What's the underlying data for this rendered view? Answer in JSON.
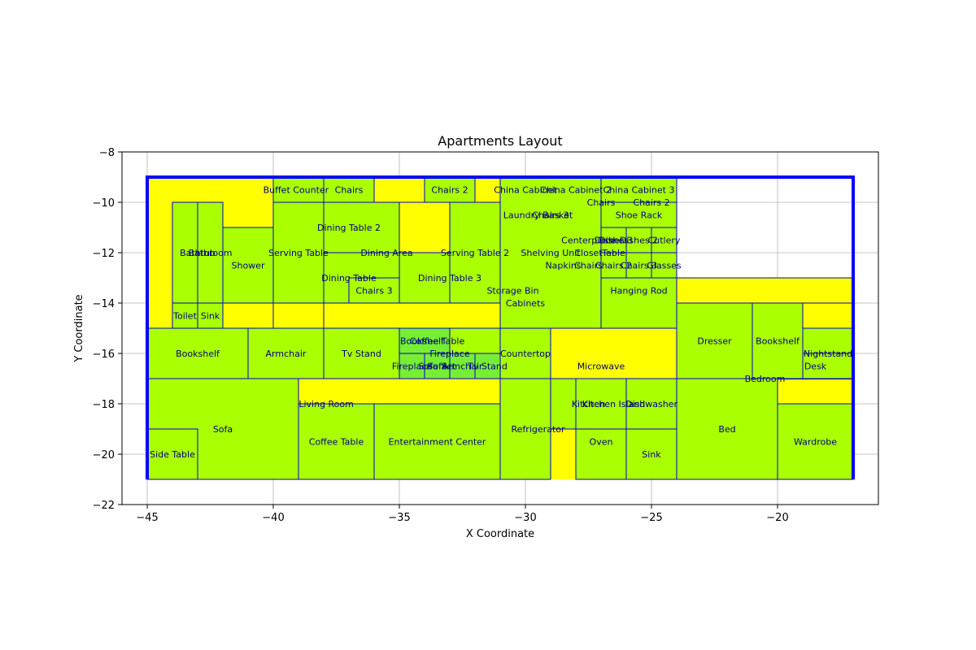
{
  "chart_data": {
    "type": "floor-plan",
    "title": "Apartments Layout",
    "xlabel": "X Coordinate",
    "ylabel": "Y Coordinate",
    "xlim": [
      -46,
      -16
    ],
    "ylim": [
      -22,
      -8
    ],
    "x_ticks": [
      -45,
      -40,
      -35,
      -30,
      -25,
      -20
    ],
    "y_ticks": [
      -22,
      -20,
      -18,
      -16,
      -14,
      -12,
      -10,
      -8
    ],
    "x_tick_labels": [
      "−45",
      "−40",
      "−35",
      "−30",
      "−25",
      "−20"
    ],
    "y_tick_labels": [
      "−22",
      "−20",
      "−18",
      "−16",
      "−14",
      "−12",
      "−10",
      "−8"
    ],
    "grid": true,
    "colors": {
      "apartment_fill": "#ffff00",
      "room_fill": "#aaff00",
      "furniture_fill": "#77ee33",
      "edge": "#0000cc",
      "boundary": "#0000ff",
      "label": "#000080",
      "grid": "#b0b0b0"
    },
    "apartments": [
      {
        "x0": -45,
        "y0": -15,
        "x1": -31,
        "y1": -9
      },
      {
        "x0": -45,
        "y0": -21,
        "x1": -31,
        "y1": -15
      },
      {
        "x0": -31,
        "y0": -15,
        "x1": -24,
        "y1": -9
      },
      {
        "x0": -31,
        "y0": -21,
        "x1": -24,
        "y1": -15
      },
      {
        "x0": -24,
        "y0": -21,
        "x1": -17,
        "y1": -13
      }
    ],
    "boundary": [
      [
        -45,
        -21
      ],
      [
        -45,
        -9
      ],
      [
        -17,
        -9
      ],
      [
        -17,
        -13
      ],
      [
        -17,
        -21
      ]
    ],
    "rooms": [
      {
        "label": "Buffet Counter",
        "x0": -40,
        "y0": -10,
        "x1": -38,
        "y1": -9
      },
      {
        "label": "Chairs",
        "x0": -38,
        "y0": -10,
        "x1": -36,
        "y1": -9
      },
      {
        "label": "Chairs 2",
        "x0": -34,
        "y0": -10,
        "x1": -32,
        "y1": -9
      },
      {
        "label": "Dining Table 2",
        "x0": -38,
        "y0": -12,
        "x1": -35,
        "y1": -10
      },
      {
        "label": "Serving Table",
        "x0": -40,
        "y0": -14,
        "x1": -38,
        "y1": -10
      },
      {
        "label": "Dining Area",
        "x0": -38,
        "y0": -12,
        "x1": -34,
        "y1": -12
      },
      {
        "label": "Dining Table",
        "x0": -38,
        "y0": -14,
        "x1": -35,
        "y1": -12
      },
      {
        "label": "Chairs 3",
        "x0": -37,
        "y0": -14,
        "x1": -35,
        "y1": -13
      },
      {
        "label": "Dining Table 3",
        "x0": -35,
        "y0": -14,
        "x1": -32,
        "y1": -12
      },
      {
        "label": "Serving Table 2",
        "x0": -33,
        "y0": -14,
        "x1": -31,
        "y1": -10
      },
      {
        "label": "Bathroom",
        "x0": -44,
        "y0": -14,
        "x1": -42,
        "y1": -10
      },
      {
        "label": "Bathtub",
        "x0": -44,
        "y0": -14,
        "x1": -43,
        "y1": -10
      },
      {
        "label": "Shower",
        "x0": -42,
        "y0": -15,
        "x1": -40,
        "y1": -11
      },
      {
        "label": "Toilet",
        "x0": -44,
        "y0": -15,
        "x1": -43,
        "y1": -14
      },
      {
        "label": "Sink",
        "x0": -43,
        "y0": -15,
        "x1": -42,
        "y1": -14
      },
      {
        "label": "Bookshelf",
        "x0": -45,
        "y0": -17,
        "x1": -41,
        "y1": -15
      },
      {
        "label": "Armchair",
        "x0": -41,
        "y0": -17,
        "x1": -38,
        "y1": -15
      },
      {
        "label": "Tv Stand",
        "x0": -38,
        "y0": -17,
        "x1": -35,
        "y1": -15
      },
      {
        "label": "Bookshelf",
        "x0": -35,
        "y0": -16,
        "x1": -34,
        "y1": -15
      },
      {
        "label": "Coffee Table",
        "x0": -34,
        "y0": -16,
        "x1": -33,
        "y1": -15
      },
      {
        "label": "Fireplace",
        "x0": -35,
        "y0": -17,
        "x1": -31,
        "y1": -15
      },
      {
        "label": "Countertop",
        "x0": -31,
        "y0": -17,
        "x1": -29,
        "y1": -15
      },
      {
        "label": "Fireplace",
        "x0": -35,
        "y0": -17,
        "x1": -34,
        "y1": -16
      },
      {
        "label": "Sofa",
        "x0": -34,
        "y0": -17,
        "x1": -33,
        "y1": -16
      },
      {
        "label": "Sofa Set",
        "x0": -34,
        "y0": -17,
        "x1": -33,
        "y1": -16
      },
      {
        "label": "Armchair",
        "x0": -33,
        "y0": -17,
        "x1": -32,
        "y1": -16
      },
      {
        "label": "Tv Stand",
        "x0": -32,
        "y0": -17,
        "x1": -31,
        "y1": -16
      },
      {
        "label": "Sofa",
        "x0": -45,
        "y0": -21,
        "x1": -39,
        "y1": -17
      },
      {
        "label": "Side Table",
        "x0": -45,
        "y0": -21,
        "x1": -43,
        "y1": -19
      },
      {
        "label": "Living Room",
        "x0": -39,
        "y0": -21,
        "x1": -36,
        "y1": -18
      },
      {
        "label": "Coffee Table",
        "x0": -39,
        "y0": -21,
        "x1": -36,
        "y1": -18
      },
      {
        "label": "Entertainment Center",
        "x0": -36,
        "y0": -21,
        "x1": -31,
        "y1": -18
      },
      {
        "label": "China Cabinet",
        "x0": -31,
        "y0": -10,
        "x1": -29,
        "y1": -9
      },
      {
        "label": "China Cabinet 2",
        "x0": -29,
        "y0": -10,
        "x1": -27,
        "y1": -9
      },
      {
        "label": "China Cabinet 3",
        "x0": -27,
        "y0": -10,
        "x1": -24,
        "y1": -9
      },
      {
        "label": "Chairs",
        "x0": -27,
        "y0": -10,
        "x1": -26,
        "y1": -10
      },
      {
        "label": "Chairs 2",
        "x0": -26,
        "y0": -10,
        "x1": -24,
        "y1": -10
      },
      {
        "label": "Laundry Basket",
        "x0": -31,
        "y0": -11,
        "x1": -29,
        "y1": -10
      },
      {
        "label": "Chairs 3",
        "x0": -30,
        "y0": -11,
        "x1": -29,
        "y1": -10
      },
      {
        "label": "Shoe Rack",
        "x0": -27,
        "y0": -11,
        "x1": -24,
        "y1": -10
      },
      {
        "label": "Centerpiece",
        "x0": -28,
        "y0": -12,
        "x1": -27,
        "y1": -11
      },
      {
        "label": "Dishes",
        "x0": -27,
        "y0": -12,
        "x1": -26,
        "y1": -11
      },
      {
        "label": "Table",
        "x0": -27,
        "y0": -12,
        "x1": -26,
        "y1": -11
      },
      {
        "label": "Dishes 2",
        "x0": -26,
        "y0": -12,
        "x1": -25,
        "y1": -11
      },
      {
        "label": "Cutlery",
        "x0": -25,
        "y0": -12,
        "x1": -24,
        "y1": -11
      },
      {
        "label": "Shelving Unit",
        "x0": -31,
        "y0": -12,
        "x1": -29,
        "y1": -11
      },
      {
        "label": "Closet",
        "x0": -29,
        "y0": -12,
        "x1": -27,
        "y1": -11
      },
      {
        "label": "Table",
        "x0": -27,
        "y0": -12,
        "x1": -25,
        "y1": -12
      },
      {
        "label": "Napkins",
        "x0": -29,
        "y0": -13,
        "x1": -28,
        "y1": -12
      },
      {
        "label": "Chairs",
        "x0": -28,
        "y0": -13,
        "x1": -27,
        "y1": -12
      },
      {
        "label": "Chairs 2",
        "x0": -27,
        "y0": -13,
        "x1": -26,
        "y1": -12
      },
      {
        "label": "Chairs 3",
        "x0": -26,
        "y0": -13,
        "x1": -25,
        "y1": -12
      },
      {
        "label": "Glasses",
        "x0": -25,
        "y0": -13,
        "x1": -24,
        "y1": -12
      },
      {
        "label": "Storage Bin",
        "x0": -31,
        "y0": -14,
        "x1": -29,
        "y1": -13
      },
      {
        "label": "Cabinets",
        "x0": -31,
        "y0": -15,
        "x1": -27,
        "y1": -9
      },
      {
        "label": "Hanging Rod",
        "x0": -27,
        "y0": -15,
        "x1": -24,
        "y1": -13
      },
      {
        "label": "Microwave",
        "x0": -28,
        "y0": -17,
        "x1": -26,
        "y1": -16
      },
      {
        "label": "Kitchen",
        "x0": -29,
        "y0": -19,
        "x1": -27,
        "y1": -17
      },
      {
        "label": "Kitchen Island",
        "x0": -28,
        "y0": -19,
        "x1": -26,
        "y1": -17
      },
      {
        "label": "Dishwasher",
        "x0": -26,
        "y0": -19,
        "x1": -24,
        "y1": -17
      },
      {
        "label": "Refrigerator",
        "x0": -31,
        "y0": -21,
        "x1": -29,
        "y1": -17
      },
      {
        "label": "Oven",
        "x0": -28,
        "y0": -21,
        "x1": -26,
        "y1": -19
      },
      {
        "label": "Sink",
        "x0": -26,
        "y0": -21,
        "x1": -24,
        "y1": -19
      },
      {
        "label": "Dresser",
        "x0": -24,
        "y0": -17,
        "x1": -21,
        "y1": -14
      },
      {
        "label": "Bookshelf",
        "x0": -21,
        "y0": -17,
        "x1": -19,
        "y1": -14
      },
      {
        "label": "Nightstand",
        "x0": -19,
        "y0": -16,
        "x1": -17,
        "y1": -15
      },
      {
        "label": "Desk",
        "x0": -19,
        "y0": -17,
        "x1": -17,
        "y1": -16
      },
      {
        "label": "Bedroom",
        "x0": -24,
        "y0": -17,
        "x1": -17,
        "y1": -17
      },
      {
        "label": "Bed",
        "x0": -24,
        "y0": -21,
        "x1": -20,
        "y1": -17
      },
      {
        "label": "Wardrobe",
        "x0": -20,
        "y0": -21,
        "x1": -17,
        "y1": -18
      }
    ],
    "furniture": [
      {
        "x0": -35,
        "y0": -16,
        "x1": -33,
        "y1": -15
      },
      {
        "x0": -35,
        "y0": -17,
        "x1": -34,
        "y1": -16
      },
      {
        "x0": -34,
        "y0": -17,
        "x1": -33,
        "y1": -16
      },
      {
        "x0": -33,
        "y0": -17,
        "x1": -32,
        "y1": -16
      },
      {
        "x0": -32,
        "y0": -17,
        "x1": -31,
        "y1": -16
      }
    ],
    "yellow_blocks": [
      {
        "x0": -38,
        "y0": -15,
        "x1": -31,
        "y1": -14
      },
      {
        "x0": -42,
        "y0": -15,
        "x1": -40,
        "y1": -14
      },
      {
        "x0": -35,
        "y0": -12,
        "x1": -33,
        "y1": -10
      },
      {
        "x0": -39,
        "y0": -18,
        "x1": -31,
        "y1": -17
      },
      {
        "x0": -29,
        "y0": -17,
        "x1": -24,
        "y1": -15
      },
      {
        "x0": -24,
        "y0": -14,
        "x1": -17,
        "y1": -13
      },
      {
        "x0": -19,
        "y0": -15,
        "x1": -17,
        "y1": -14
      }
    ],
    "text_labels": [
      {
        "text": "Buffet Counter",
        "x": -39.1,
        "y": -9.5
      },
      {
        "text": "Chairs",
        "x": -37.0,
        "y": -9.5
      },
      {
        "text": "Chairs 2",
        "x": -33.0,
        "y": -9.5
      },
      {
        "text": "China Cabinet",
        "x": -30.0,
        "y": -9.5
      },
      {
        "text": "China Cabinet 2",
        "x": -28.0,
        "y": -9.5
      },
      {
        "text": "China Cabinet 3",
        "x": -25.5,
        "y": -9.5
      },
      {
        "text": "Chairs",
        "x": -27.0,
        "y": -10.0
      },
      {
        "text": "Chairs 2",
        "x": -25.0,
        "y": -10.0
      },
      {
        "text": "Laundry Basket",
        "x": -29.5,
        "y": -10.5
      },
      {
        "text": "Chairs 3",
        "x": -29.0,
        "y": -10.5
      },
      {
        "text": "Shoe Rack",
        "x": -25.5,
        "y": -10.5
      },
      {
        "text": "Dining Table 2",
        "x": -37.0,
        "y": -11.0
      },
      {
        "text": "Centerpiece",
        "x": -27.5,
        "y": -11.5
      },
      {
        "text": "Dishes",
        "x": -26.5,
        "y": -11.5
      },
      {
        "text": "Dishes 3",
        "x": -26.5,
        "y": -11.5
      },
      {
        "text": "Dishes 2",
        "x": -25.5,
        "y": -11.5
      },
      {
        "text": "Cutlery",
        "x": -24.5,
        "y": -11.5
      },
      {
        "text": "Bathtub",
        "x": -43.0,
        "y": -12.0
      },
      {
        "text": "Bathroom",
        "x": -42.5,
        "y": -12.0
      },
      {
        "text": "Serving Table",
        "x": -39.0,
        "y": -12.0
      },
      {
        "text": "Dining Area",
        "x": -35.5,
        "y": -12.0
      },
      {
        "text": "Serving Table 2",
        "x": -32.0,
        "y": -12.0
      },
      {
        "text": "Shelving Unit",
        "x": -29.0,
        "y": -12.0
      },
      {
        "text": "Closet",
        "x": -27.5,
        "y": -12.0
      },
      {
        "text": "Table",
        "x": -26.5,
        "y": -12.0
      },
      {
        "text": "Shower",
        "x": -41.0,
        "y": -12.5
      },
      {
        "text": "Napkins",
        "x": -28.5,
        "y": -12.5
      },
      {
        "text": "Chairs",
        "x": -27.5,
        "y": -12.5
      },
      {
        "text": "Chairs 2",
        "x": -26.5,
        "y": -12.5
      },
      {
        "text": "Chairs 3",
        "x": -25.5,
        "y": -12.5
      },
      {
        "text": "Glasses",
        "x": -24.5,
        "y": -12.5
      },
      {
        "text": "Dining Table",
        "x": -37.0,
        "y": -13.0
      },
      {
        "text": "Dining Table 3",
        "x": -33.0,
        "y": -13.0
      },
      {
        "text": "Chairs 3",
        "x": -36.0,
        "y": -13.5
      },
      {
        "text": "Storage Bin",
        "x": -30.5,
        "y": -13.5
      },
      {
        "text": "Hanging Rod",
        "x": -25.5,
        "y": -13.5
      },
      {
        "text": "Cabinets",
        "x": -30.0,
        "y": -14.0
      },
      {
        "text": "Toilet",
        "x": -43.5,
        "y": -14.5
      },
      {
        "text": "Sink",
        "x": -42.5,
        "y": -14.5
      },
      {
        "text": "Bookshelf",
        "x": -34.1,
        "y": -15.5
      },
      {
        "text": "Coffee Table",
        "x": -33.5,
        "y": -15.5
      },
      {
        "text": "Dresser",
        "x": -22.5,
        "y": -15.5
      },
      {
        "text": "Bookshelf",
        "x": -20.0,
        "y": -15.5
      },
      {
        "text": "Bookshelf",
        "x": -43.0,
        "y": -16.0
      },
      {
        "text": "Armchair",
        "x": -39.5,
        "y": -16.0
      },
      {
        "text": "Tv Stand",
        "x": -36.5,
        "y": -16.0
      },
      {
        "text": "Fireplace",
        "x": -33.0,
        "y": -16.0
      },
      {
        "text": "Countertop",
        "x": -30.0,
        "y": -16.0
      },
      {
        "text": "Nightstand",
        "x": -18.0,
        "y": -16.0
      },
      {
        "text": "Fireplace",
        "x": -34.5,
        "y": -16.5
      },
      {
        "text": "Sofa",
        "x": -33.5,
        "y": -16.5
      },
      {
        "text": "Sofa Set",
        "x": -33.5,
        "y": -16.5
      },
      {
        "text": "Armchair",
        "x": -32.5,
        "y": -16.5
      },
      {
        "text": "Tv Stand",
        "x": -31.5,
        "y": -16.5
      },
      {
        "text": "Microwave",
        "x": -27.0,
        "y": -16.5
      },
      {
        "text": "Desk",
        "x": -18.5,
        "y": -16.5
      },
      {
        "text": "Bedroom",
        "x": -20.5,
        "y": -17.0
      },
      {
        "text": "Living Room",
        "x": -37.9,
        "y": -18.0
      },
      {
        "text": "Kitchen",
        "x": -27.5,
        "y": -18.0
      },
      {
        "text": "Kitchen Island",
        "x": -26.5,
        "y": -18.0
      },
      {
        "text": "Dishwasher",
        "x": -25.0,
        "y": -18.0
      },
      {
        "text": "Sofa",
        "x": -42.0,
        "y": -19.0
      },
      {
        "text": "Refrigerator",
        "x": -29.5,
        "y": -19.0
      },
      {
        "text": "Bed",
        "x": -22.0,
        "y": -19.0
      },
      {
        "text": "Coffee Table",
        "x": -37.5,
        "y": -19.5
      },
      {
        "text": "Entertainment Center",
        "x": -33.5,
        "y": -19.5
      },
      {
        "text": "Oven",
        "x": -27.0,
        "y": -19.5
      },
      {
        "text": "Wardrobe",
        "x": -18.5,
        "y": -19.5
      },
      {
        "text": "Side Table",
        "x": -44.0,
        "y": -20.0
      },
      {
        "text": "Sink",
        "x": -25.0,
        "y": -20.0
      }
    ]
  }
}
